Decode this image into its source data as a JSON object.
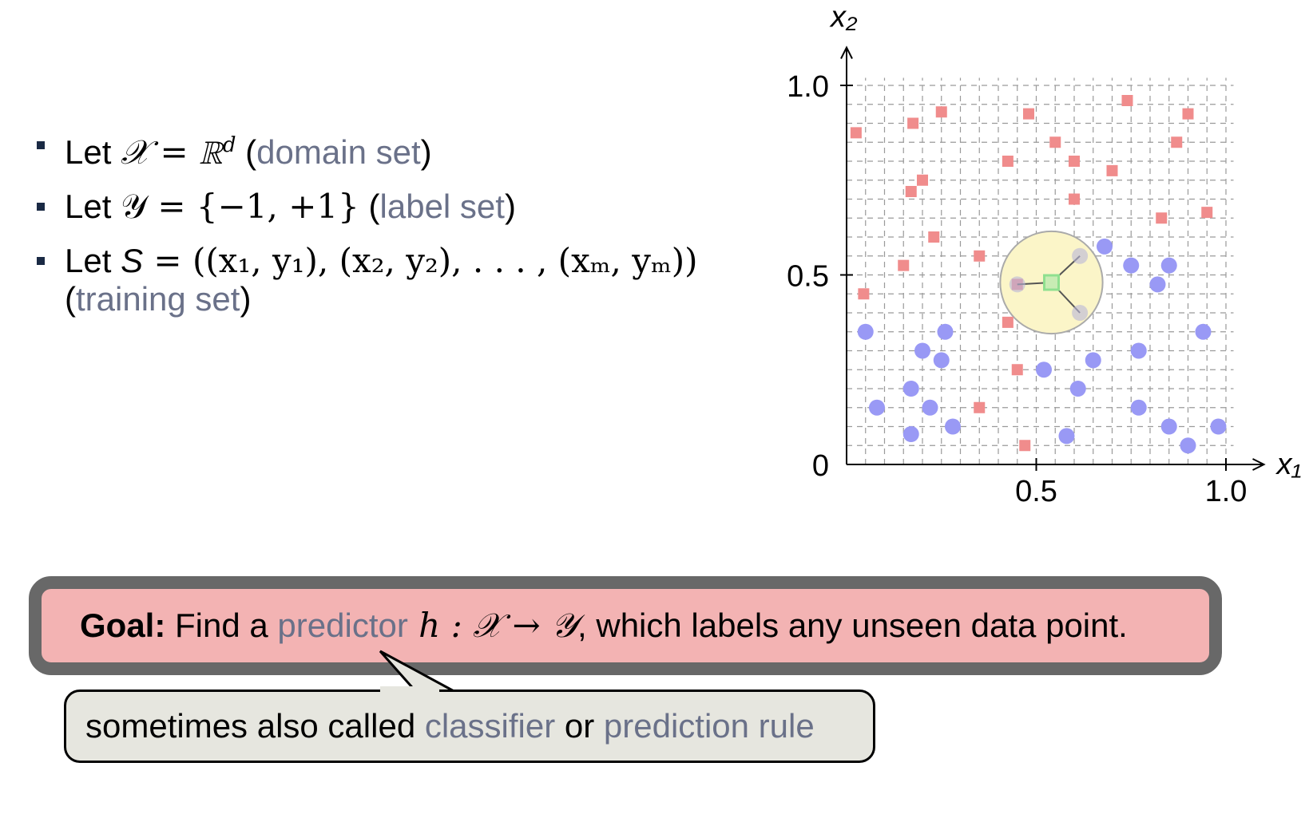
{
  "bullets": [
    {
      "prefix": "Let ",
      "math": "𝒳 = ℝ",
      "sup": "d",
      "open": " (",
      "term": "domain set",
      "close": ")"
    },
    {
      "prefix": "Let ",
      "math": "𝒴 = {−1, +1}",
      "open": " (",
      "term": "label set",
      "close": ")"
    },
    {
      "prefix": "Let ",
      "math_lead": "S",
      "math": " = ((x₁, y₁), (x₂, y₂), . . . , (xₘ, yₘ))",
      "open": "(",
      "term": "training set",
      "close": ")"
    }
  ],
  "goal": {
    "label": "Goal:",
    "text1": " Find a ",
    "term": "predictor",
    "math": " h : 𝒳 → 𝒴",
    "text2": ", which labels any unseen data point."
  },
  "note": {
    "text1": "sometimes also called ",
    "term1": "classifier",
    "text2": " or ",
    "term2": "prediction rule"
  },
  "chart_data": {
    "type": "scatter",
    "xlabel": "x₁",
    "ylabel": "x₂",
    "xlim": [
      0,
      1.1
    ],
    "ylim": [
      0,
      1.1
    ],
    "xticks": [
      {
        "value": 0.5,
        "label": "0.5"
      },
      {
        "value": 1.0,
        "label": "1.0"
      }
    ],
    "yticks": [
      {
        "value": 0,
        "label": "0"
      },
      {
        "value": 0.5,
        "label": "0.5"
      },
      {
        "value": 1.0,
        "label": "1.0"
      }
    ],
    "grid": true,
    "series": [
      {
        "marker": "square",
        "color": "#f08c8c",
        "points": [
          [
            0.025,
            0.875
          ],
          [
            0.175,
            0.9
          ],
          [
            0.25,
            0.93
          ],
          [
            0.48,
            0.925
          ],
          [
            0.74,
            0.96
          ],
          [
            0.9,
            0.925
          ],
          [
            0.55,
            0.85
          ],
          [
            0.87,
            0.85
          ],
          [
            0.425,
            0.8
          ],
          [
            0.6,
            0.8
          ],
          [
            0.7,
            0.775
          ],
          [
            0.2,
            0.75
          ],
          [
            0.17,
            0.72
          ],
          [
            0.6,
            0.7
          ],
          [
            0.95,
            0.665
          ],
          [
            0.83,
            0.65
          ],
          [
            0.23,
            0.6
          ],
          [
            0.15,
            0.525
          ],
          [
            0.35,
            0.55
          ],
          [
            0.045,
            0.45
          ],
          [
            0.45,
            0.475
          ],
          [
            0.425,
            0.375
          ],
          [
            0.45,
            0.25
          ],
          [
            0.35,
            0.15
          ],
          [
            0.47,
            0.05
          ]
        ]
      },
      {
        "marker": "circle",
        "color": "#9999f5",
        "points": [
          [
            0.68,
            0.575
          ],
          [
            0.75,
            0.525
          ],
          [
            0.85,
            0.525
          ],
          [
            0.82,
            0.475
          ],
          [
            0.05,
            0.35
          ],
          [
            0.26,
            0.35
          ],
          [
            0.2,
            0.3
          ],
          [
            0.25,
            0.275
          ],
          [
            0.77,
            0.3
          ],
          [
            0.94,
            0.35
          ],
          [
            0.52,
            0.25
          ],
          [
            0.65,
            0.275
          ],
          [
            0.17,
            0.2
          ],
          [
            0.61,
            0.2
          ],
          [
            0.08,
            0.15
          ],
          [
            0.22,
            0.15
          ],
          [
            0.77,
            0.15
          ],
          [
            0.17,
            0.08
          ],
          [
            0.28,
            0.1
          ],
          [
            0.58,
            0.075
          ],
          [
            0.85,
            0.1
          ],
          [
            0.98,
            0.1
          ],
          [
            0.9,
            0.05
          ]
        ]
      }
    ],
    "query": {
      "point": [
        0.54,
        0.48
      ],
      "radius": 0.135,
      "neighbors": [
        [
          0.615,
          0.55
        ],
        [
          0.615,
          0.4
        ],
        [
          0.45,
          0.475
        ]
      ],
      "circle_fill": "#fbf5c8",
      "circle_stroke": "#aaaaaa",
      "marker_color": "#8fe08f"
    }
  }
}
